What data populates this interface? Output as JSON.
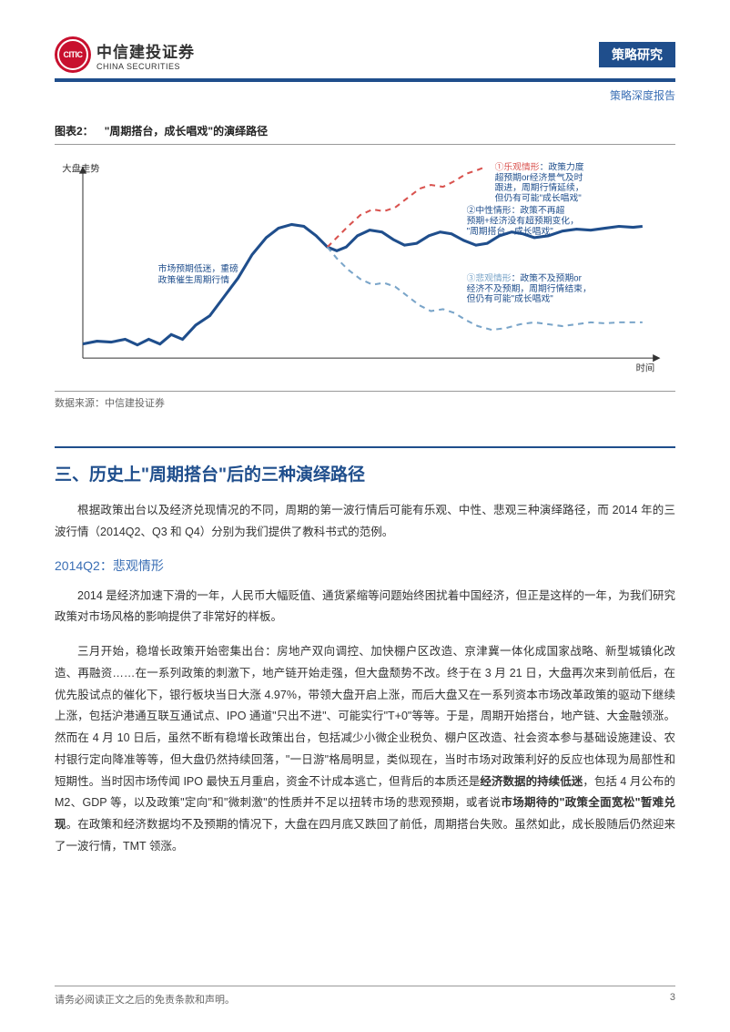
{
  "header": {
    "logo_inner": "CITIC",
    "logo_cn": "中信建投证券",
    "logo_en": "CHINA SECURITIES",
    "category": "策略研究",
    "subcategory": "策略深度报告"
  },
  "figure": {
    "number": "图表2：",
    "title": "\"周期搭台，成长唱戏\"的演绎路径",
    "y_axis_label": "大盘走势",
    "x_axis_label": "时间",
    "annotation_left": "市场预期低迷，重磅\n政策催生周期行情",
    "annotation_top": {
      "label": "①乐观情形",
      "label_color": "#d9534f",
      "text": "：政策力度\n超预期or经济景气及时\n跟进，周期行情延续，\n但仍有可能\"成长唱戏\"",
      "text_color": "#1f4e8c"
    },
    "annotation_mid": {
      "label": "②中性情形",
      "label_color": "#1f4e8c",
      "text": "：政策不再超\n预期+经济没有超预期变化，\n\"周期搭台，成长唱戏\"",
      "text_color": "#1f4e8c"
    },
    "annotation_bot": {
      "label": "③悲观情形",
      "label_color": "#7aa5c9",
      "text": "：政策不及预期or\n经济不及预期，周期行情结束，\n但仍有可能\"成长唱戏\"",
      "text_color": "#1f4e8c"
    },
    "source_label": "数据来源：中信建投证券",
    "line_main_color": "#1f4e8c",
    "line_main_width": 3,
    "line_opt_color": "#d9534f",
    "line_opt_dash": "6,5",
    "line_opt_width": 2,
    "line_pes_color": "#7aa5c9",
    "line_pes_dash": "6,5",
    "line_pes_width": 2,
    "axis_color": "#333333",
    "background_color": "#ffffff",
    "main_path": [
      [
        30,
        195
      ],
      [
        45,
        192
      ],
      [
        60,
        193
      ],
      [
        75,
        190
      ],
      [
        88,
        196
      ],
      [
        100,
        190
      ],
      [
        112,
        195
      ],
      [
        124,
        185
      ],
      [
        136,
        190
      ],
      [
        150,
        175
      ],
      [
        165,
        165
      ],
      [
        180,
        145
      ],
      [
        195,
        125
      ],
      [
        210,
        100
      ],
      [
        225,
        82
      ],
      [
        238,
        72
      ],
      [
        252,
        68
      ],
      [
        265,
        70
      ],
      [
        278,
        80
      ],
      [
        290,
        92
      ],
      [
        300,
        96
      ],
      [
        310,
        92
      ],
      [
        322,
        80
      ],
      [
        335,
        74
      ],
      [
        348,
        76
      ],
      [
        360,
        84
      ],
      [
        372,
        90
      ],
      [
        385,
        88
      ],
      [
        398,
        80
      ],
      [
        410,
        76
      ],
      [
        422,
        78
      ],
      [
        435,
        85
      ],
      [
        448,
        90
      ],
      [
        460,
        88
      ],
      [
        473,
        80
      ],
      [
        486,
        76
      ],
      [
        498,
        78
      ],
      [
        510,
        82
      ],
      [
        525,
        80
      ],
      [
        540,
        75
      ],
      [
        555,
        73
      ],
      [
        570,
        74
      ],
      [
        585,
        72
      ],
      [
        600,
        70
      ],
      [
        615,
        71
      ],
      [
        625,
        70
      ]
    ],
    "opt_path": [
      [
        290,
        92
      ],
      [
        300,
        82
      ],
      [
        312,
        70
      ],
      [
        325,
        58
      ],
      [
        338,
        52
      ],
      [
        350,
        54
      ],
      [
        362,
        50
      ],
      [
        375,
        40
      ],
      [
        388,
        30
      ],
      [
        400,
        26
      ],
      [
        413,
        28
      ],
      [
        425,
        22
      ],
      [
        438,
        14
      ],
      [
        450,
        10
      ],
      [
        455,
        8
      ]
    ],
    "pes_path": [
      [
        290,
        92
      ],
      [
        300,
        104
      ],
      [
        312,
        116
      ],
      [
        325,
        126
      ],
      [
        338,
        132
      ],
      [
        350,
        130
      ],
      [
        362,
        134
      ],
      [
        375,
        144
      ],
      [
        388,
        154
      ],
      [
        400,
        160
      ],
      [
        413,
        158
      ],
      [
        425,
        162
      ],
      [
        438,
        170
      ],
      [
        450,
        176
      ],
      [
        465,
        180
      ],
      [
        480,
        178
      ],
      [
        495,
        174
      ],
      [
        510,
        172
      ],
      [
        525,
        174
      ],
      [
        540,
        176
      ],
      [
        555,
        174
      ],
      [
        570,
        172
      ],
      [
        585,
        173
      ],
      [
        600,
        172
      ],
      [
        615,
        172
      ],
      [
        625,
        172
      ]
    ]
  },
  "section": {
    "title": "三、历史上\"周期搭台\"后的三种演绎路径",
    "intro": "根据政策出台以及经济兑现情况的不同，周期的第一波行情后可能有乐观、中性、悲观三种演绎路径，而 2014 年的三波行情（2014Q2、Q3 和 Q4）分别为我们提供了教科书式的范例。",
    "sub_title": "2014Q2：悲观情形",
    "para1": "2014 是经济加速下滑的一年，人民币大幅贬值、通货紧缩等问题始终困扰着中国经济，但正是这样的一年，为我们研究政策对市场风格的影响提供了非常好的样板。",
    "para2_a": "三月开始，稳增长政策开始密集出台：房地产双向调控、加快棚户区改造、京津冀一体化成国家战略、新型城镇化改造、再融资……在一系列政策的刺激下，地产链开始走强，但大盘颓势不改。终于在 3 月 21 日，大盘再次来到前低后，在优先股试点的催化下，银行板块当日大涨 4.97%，带领大盘开启上涨，而后大盘又在一系列资本市场改革政策的驱动下继续上涨，包括沪港通互联互通试点、IPO 通道\"只出不进\"、可能实行\"T+0\"等等。于是，周期开始搭台，地产链、大金融领涨。然而在 4 月 10 日后，虽然不断有稳增长政策出台，包括减少小微企业税负、棚户区改造、社会资本参与基础设施建设、农村银行定向降准等等，但大盘仍然持续回落，\"一日游\"格局明显，类似现在，当时市场对政策利好的反应也体现为局部性和短期性。当时因市场传闻 IPO 最快五月重启，资金不计成本逃亡，但背后的本质还是",
    "para2_b_bold": "经济数据的持续低迷",
    "para2_c": "，包括 4 月公布的 M2、GDP 等，以及政策\"定向\"和\"微刺激\"的性质并不足以扭转市场的悲观预期，或者说",
    "para2_d_bold": "市场期待的\"政策全面宽松\"暂难兑现",
    "para2_e": "。在政策和经济数据均不及预期的情况下，大盘在四月底又跌回了前低，周期搭台失败。虽然如此，成长股随后仍然迎来了一波行情，TMT 领涨。"
  },
  "footer": {
    "disclaimer": "请务必阅读正文之后的免责条款和声明。",
    "page_number": "3"
  }
}
